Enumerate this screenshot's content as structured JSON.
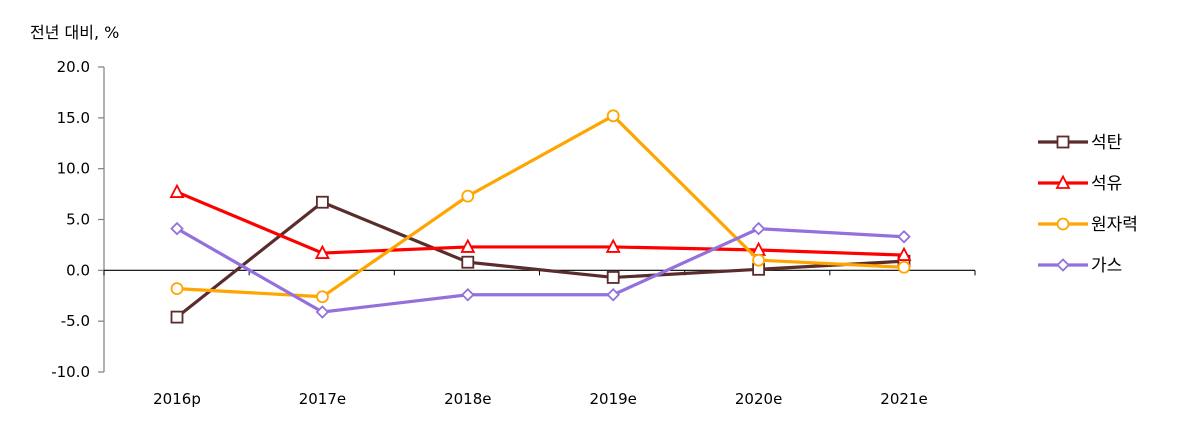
{
  "chart_data": {
    "type": "line",
    "unit_label": "전년 대비, %",
    "categories": [
      "2016p",
      "2017e",
      "2018e",
      "2019e",
      "2020e",
      "2021e"
    ],
    "y_ticks": [
      "20.0",
      "15.0",
      "10.0",
      "5.0",
      "0.0",
      "-5.0",
      "-10.0"
    ],
    "ylim": [
      -10,
      20
    ],
    "grid": false,
    "legend_position": "right",
    "series": [
      {
        "name": "석탄",
        "color": "#5b2c2c",
        "marker": "square",
        "values": [
          -4.6,
          6.7,
          0.8,
          -0.7,
          0.1,
          0.9
        ]
      },
      {
        "name": "석유",
        "color": "#ff0000",
        "marker": "triangle",
        "values": [
          7.7,
          1.7,
          2.3,
          2.3,
          2.0,
          1.5
        ]
      },
      {
        "name": "원자력",
        "color": "#ffa500",
        "marker": "circle",
        "values": [
          -1.8,
          -2.6,
          7.3,
          15.2,
          1.0,
          0.3
        ]
      },
      {
        "name": "가스",
        "color": "#9370db",
        "marker": "diamond",
        "values": [
          4.1,
          -4.1,
          -2.4,
          -2.4,
          4.1,
          3.3
        ]
      }
    ]
  }
}
